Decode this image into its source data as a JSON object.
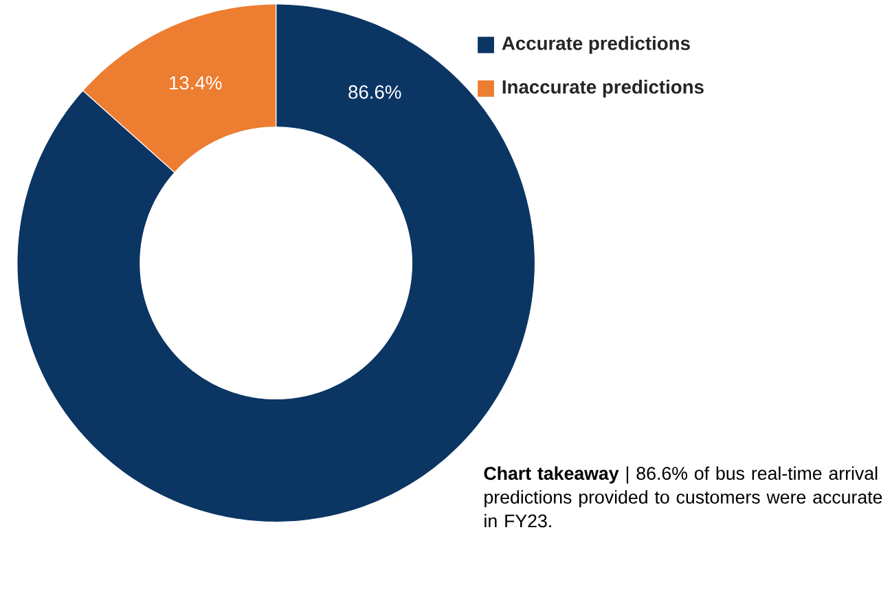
{
  "chart_data": {
    "type": "donut",
    "categories": [
      "Accurate predictions",
      "Inaccurate predictions"
    ],
    "values": [
      86.6,
      13.4
    ],
    "value_labels": [
      "86.6%",
      "13.4%"
    ],
    "colors": [
      "#0b3563",
      "#ed7d31"
    ],
    "legend": "top right",
    "annotations": [
      "**Chart takeaway** | 86.6% of bus real-time arrival predictions provided to customers were accurate in FY23."
    ]
  }
}
